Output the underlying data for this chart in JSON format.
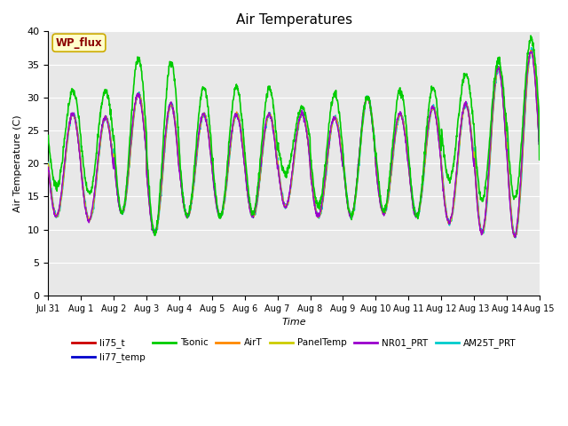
{
  "title": "Air Temperatures",
  "xlabel": "Time",
  "ylabel": "Air Temperature (C)",
  "ylim": [
    0,
    40
  ],
  "xlim_days": [
    0,
    15
  ],
  "annotation": "WP_flux",
  "background_color": "#e8e8e8",
  "grid_color": "white",
  "series": {
    "li75_t": {
      "color": "#cc0000",
      "lw": 1.0,
      "zorder": 5
    },
    "li77_temp": {
      "color": "#0000cc",
      "lw": 1.0,
      "zorder": 5
    },
    "Tsonic": {
      "color": "#00cc00",
      "lw": 1.2,
      "zorder": 6
    },
    "AirT": {
      "color": "#ff8800",
      "lw": 1.0,
      "zorder": 5
    },
    "PanelTemp": {
      "color": "#cccc00",
      "lw": 1.0,
      "zorder": 5
    },
    "NR01_PRT": {
      "color": "#9900cc",
      "lw": 1.0,
      "zorder": 5
    },
    "AM25T_PRT": {
      "color": "#00cccc",
      "lw": 1.2,
      "zorder": 4
    }
  },
  "legend_order": [
    "li75_t",
    "li77_temp",
    "Tsonic",
    "AirT",
    "PanelTemp",
    "NR01_PRT",
    "AM25T_PRT"
  ],
  "xtick_labels": [
    "Jul 31",
    "Aug 1",
    "Aug 2",
    "Aug 3",
    "Aug 4",
    "Aug 5",
    "Aug 6",
    "Aug 7",
    "Aug 8",
    "Aug 9",
    "Aug 10",
    "Aug 11",
    "Aug 12",
    "Aug 13",
    "Aug 14",
    "Aug 15"
  ],
  "xtick_positions": [
    0,
    1,
    2,
    3,
    4,
    5,
    6,
    7,
    8,
    9,
    10,
    11,
    12,
    13,
    14,
    15
  ],
  "ytick_positions": [
    0,
    5,
    10,
    15,
    20,
    25,
    30,
    35,
    40
  ],
  "figsize": [
    6.4,
    4.8
  ],
  "dpi": 100
}
